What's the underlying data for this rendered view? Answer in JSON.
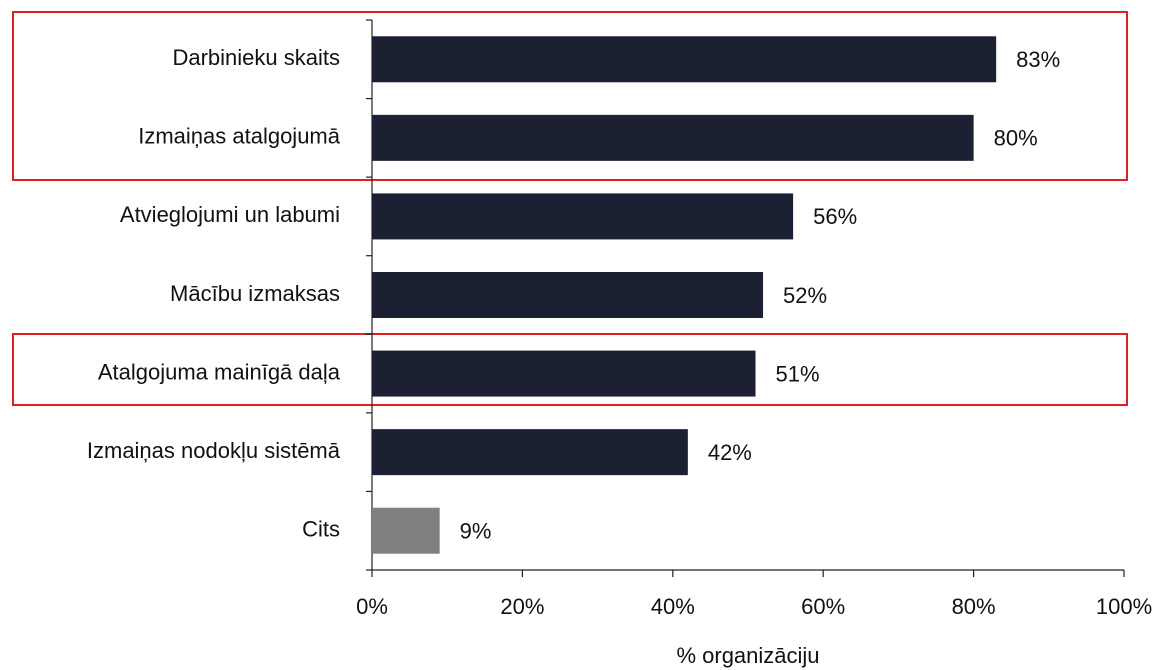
{
  "chart_data": {
    "type": "bar",
    "orientation": "horizontal",
    "categories": [
      "Darbinieku skaits",
      "Izmaiņas atalgojumā",
      "Atvieglojumi un labumi",
      "Mācību izmaksas",
      "Atalgojuma mainīgā daļa",
      "Izmaiņas nodokļu sistēmā",
      "Cits"
    ],
    "values": [
      83,
      80,
      56,
      52,
      51,
      42,
      9
    ],
    "value_labels": [
      "83%",
      "80%",
      "56%",
      "52%",
      "51%",
      "42%",
      "9%"
    ],
    "colors": [
      "#1c2033",
      "#1c2033",
      "#1c2033",
      "#1c2033",
      "#1c2033",
      "#1c2033",
      "#808080"
    ],
    "xlim": [
      0,
      100
    ],
    "xticks": [
      {
        "value": 0,
        "label": "0%"
      },
      {
        "value": 20,
        "label": "20%"
      },
      {
        "value": 40,
        "label": "40%"
      },
      {
        "value": 60,
        "label": "60%"
      },
      {
        "value": 80,
        "label": "80%"
      },
      {
        "value": 100,
        "label": "100%"
      }
    ],
    "xlabel": "% organizāciju"
  }
}
